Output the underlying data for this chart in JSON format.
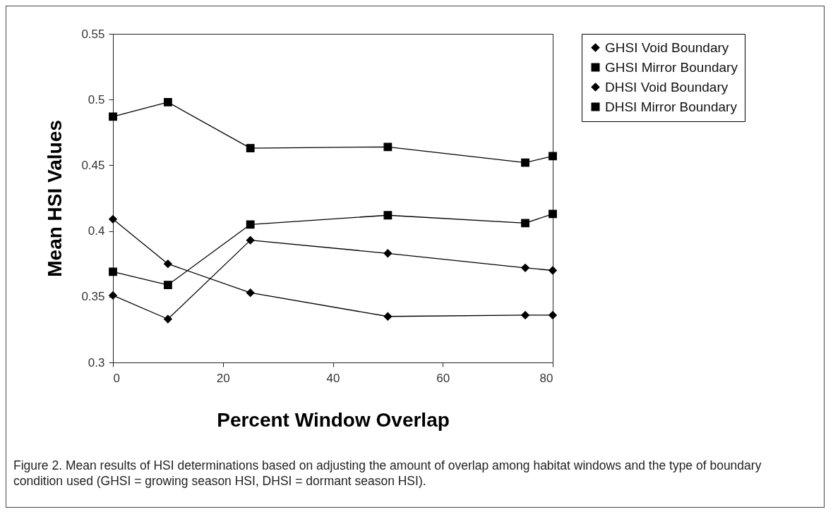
{
  "chart_data": {
    "type": "line",
    "xlabel": "Percent Window Overlap",
    "ylabel": "Mean HSI Values",
    "x": [
      0,
      10,
      25,
      50,
      75,
      80
    ],
    "series": [
      {
        "name": "GHSI Void Boundary",
        "color": "#000000",
        "marker": "diamond",
        "values": [
          0.351,
          0.333,
          0.393,
          0.383,
          0.372,
          0.37
        ]
      },
      {
        "name": "GHSI Mirror Boundary",
        "color": "#000000",
        "marker": "square",
        "values": [
          0.369,
          0.359,
          0.405,
          0.412,
          0.406,
          0.413
        ]
      },
      {
        "name": "DHSI Void Boundary",
        "color": "#000000",
        "marker": "diamond",
        "values": [
          0.409,
          0.375,
          0.353,
          0.335,
          0.336,
          0.336
        ]
      },
      {
        "name": "DHSI Mirror Boundary",
        "color": "#000000",
        "marker": "square",
        "values": [
          0.487,
          0.498,
          0.463,
          0.464,
          0.452,
          0.457
        ]
      }
    ],
    "xlim": [
      0,
      80
    ],
    "xticks": [
      0,
      20,
      40,
      60,
      80
    ],
    "ylim": [
      0.3,
      0.55
    ],
    "yticks": [
      0.3,
      0.35,
      0.4,
      0.45,
      0.5,
      0.55
    ],
    "grid": false,
    "legend": "right",
    "line_style": "solid",
    "annotations": [
      "Figure 2. Mean results of HSI determinations based on adjusting the amount of overlap among habitat windows and the type of boundary condition used (GHSI = growing season HSI, DHSI = dormant season HSI)."
    ]
  }
}
